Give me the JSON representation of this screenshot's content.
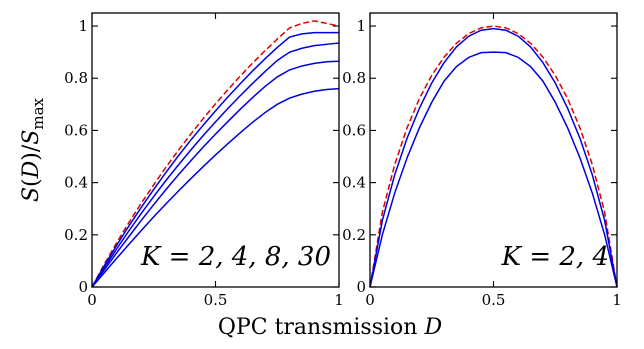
{
  "ylabel": "S(D)/S_max",
  "xlabel": "QPC transmission D",
  "colors": {
    "solid": "#0000dd",
    "dashed": "#dd0000",
    "axis": "#000000"
  },
  "chart_data": [
    {
      "type": "line",
      "xlim": [
        0,
        1
      ],
      "ylim": [
        0,
        1.05
      ],
      "x_ticks": [
        "0",
        "0.5",
        "1"
      ],
      "y_ticks": [
        "0",
        "0.2",
        "0.4",
        "0.6",
        "0.8",
        "1"
      ],
      "annotation": "K = 2, 4, 8, 30",
      "x": [
        0,
        0.05,
        0.1,
        0.15,
        0.2,
        0.25,
        0.3,
        0.35,
        0.4,
        0.45,
        0.5,
        0.55,
        0.6,
        0.65,
        0.7,
        0.75,
        0.8,
        0.85,
        0.9,
        0.95,
        1.0
      ],
      "series": [
        {
          "style": "dashed",
          "values": [
            0,
            0.088,
            0.17,
            0.248,
            0.322,
            0.392,
            0.46,
            0.524,
            0.586,
            0.645,
            0.702,
            0.756,
            0.808,
            0.858,
            0.905,
            0.95,
            0.993,
            1.01,
            1.02,
            1.01,
            1.0
          ]
        },
        {
          "style": "solid",
          "values": [
            0,
            0.082,
            0.16,
            0.235,
            0.306,
            0.374,
            0.44,
            0.503,
            0.563,
            0.62,
            0.675,
            0.728,
            0.779,
            0.828,
            0.874,
            0.918,
            0.958,
            0.97,
            0.975,
            0.975,
            0.975
          ]
        },
        {
          "style": "solid",
          "values": [
            0,
            0.074,
            0.146,
            0.216,
            0.283,
            0.347,
            0.409,
            0.468,
            0.525,
            0.58,
            0.633,
            0.684,
            0.733,
            0.78,
            0.825,
            0.868,
            0.9,
            0.915,
            0.925,
            0.93,
            0.935
          ]
        },
        {
          "style": "solid",
          "values": [
            0,
            0.066,
            0.131,
            0.194,
            0.256,
            0.316,
            0.374,
            0.43,
            0.484,
            0.536,
            0.586,
            0.634,
            0.681,
            0.726,
            0.768,
            0.805,
            0.832,
            0.847,
            0.857,
            0.863,
            0.865
          ]
        },
        {
          "style": "solid",
          "values": [
            0,
            0.055,
            0.11,
            0.164,
            0.217,
            0.269,
            0.319,
            0.368,
            0.415,
            0.461,
            0.506,
            0.549,
            0.591,
            0.631,
            0.668,
            0.7,
            0.724,
            0.739,
            0.75,
            0.757,
            0.76
          ]
        }
      ]
    },
    {
      "type": "line",
      "xlim": [
        0,
        1
      ],
      "ylim": [
        0,
        1.05
      ],
      "x_ticks": [
        "0",
        "0.5",
        "1"
      ],
      "y_ticks": [
        "0",
        "0.2",
        "0.4",
        "0.6",
        "0.8",
        "1"
      ],
      "annotation": "K = 2, 4",
      "x": [
        0,
        0.05,
        0.1,
        0.15,
        0.2,
        0.25,
        0.3,
        0.35,
        0.4,
        0.45,
        0.5,
        0.55,
        0.6,
        0.65,
        0.7,
        0.75,
        0.8,
        0.85,
        0.9,
        0.95,
        1.0
      ],
      "series": [
        {
          "style": "dashed",
          "values": [
            0,
            0.286,
            0.469,
            0.61,
            0.722,
            0.811,
            0.881,
            0.934,
            0.971,
            0.993,
            1.0,
            0.993,
            0.971,
            0.934,
            0.881,
            0.811,
            0.722,
            0.61,
            0.469,
            0.286,
            0
          ]
        },
        {
          "style": "solid",
          "values": [
            0,
            0.255,
            0.43,
            0.57,
            0.685,
            0.782,
            0.86,
            0.92,
            0.961,
            0.984,
            0.99,
            0.984,
            0.961,
            0.92,
            0.86,
            0.782,
            0.685,
            0.57,
            0.43,
            0.255,
            0
          ]
        },
        {
          "style": "solid",
          "values": [
            0,
            0.2,
            0.36,
            0.495,
            0.61,
            0.708,
            0.789,
            0.845,
            0.88,
            0.898,
            0.9,
            0.898,
            0.88,
            0.845,
            0.789,
            0.708,
            0.61,
            0.495,
            0.36,
            0.2,
            0
          ]
        }
      ]
    }
  ]
}
